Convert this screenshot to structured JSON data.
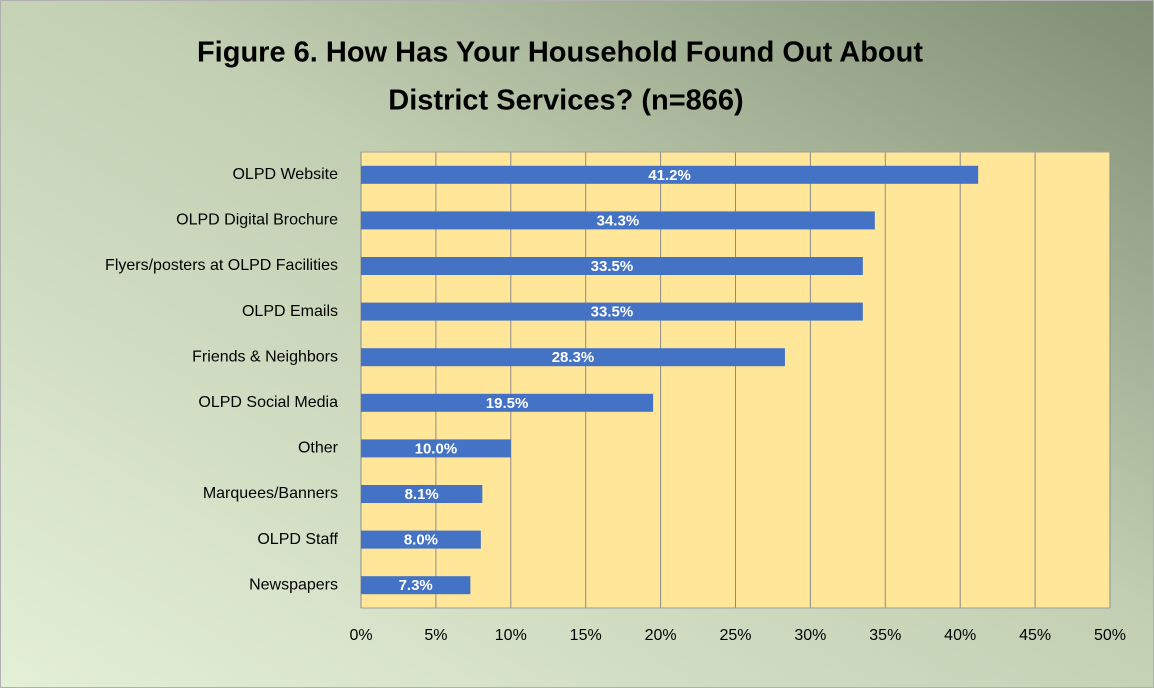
{
  "chart_data": {
    "type": "bar",
    "orientation": "horizontal",
    "title": [
      "Figure 6.  How Has Your Household Found Out About",
      "District Services?  (n=866)"
    ],
    "categories": [
      "OLPD Website",
      "OLPD Digital Brochure",
      "Flyers/posters at OLPD Facilities",
      "OLPD Emails",
      "Friends & Neighbors",
      "OLPD Social Media",
      "Other",
      "Marquees/Banners",
      "OLPD Staff",
      "Newspapers"
    ],
    "values": [
      41.2,
      34.3,
      33.5,
      33.5,
      28.3,
      19.5,
      10.0,
      8.1,
      8.0,
      7.3
    ],
    "value_labels": [
      "41.2%",
      "34.3%",
      "33.5%",
      "33.5%",
      "28.3%",
      "19.5%",
      "10.0%",
      "8.1%",
      "8.0%",
      "7.3%"
    ],
    "color": "#4472c4",
    "xlim": [
      0,
      50
    ],
    "xticks": [
      {
        "value": 0,
        "label": "0%"
      },
      {
        "value": 5,
        "label": "5%"
      },
      {
        "value": 10,
        "label": "10%"
      },
      {
        "value": 15,
        "label": "15%"
      },
      {
        "value": 20,
        "label": "20%"
      },
      {
        "value": 25,
        "label": "25%"
      },
      {
        "value": 30,
        "label": "30%"
      },
      {
        "value": 35,
        "label": "35%"
      },
      {
        "value": 40,
        "label": "40%"
      },
      {
        "value": 45,
        "label": "45%"
      },
      {
        "value": 50,
        "label": "50%"
      }
    ],
    "grid": true
  }
}
